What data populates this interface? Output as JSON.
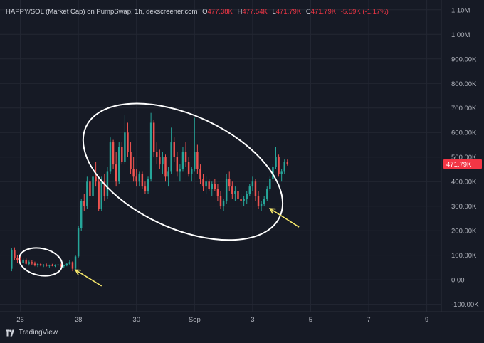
{
  "header": {
    "title": "HAPPY/SOL (Market Cap) on PumpSwap, 1h, dexscreener.com",
    "ohlc": [
      {
        "label": "O",
        "value": "477.38K"
      },
      {
        "label": "H",
        "value": "477.54K"
      },
      {
        "label": "L",
        "value": "471.79K"
      },
      {
        "label": "C",
        "value": "471.79K"
      }
    ],
    "change": "-5.59K (-1.17%)"
  },
  "footer": {
    "brand": "TradingView",
    "logo_icon": "tradingview-logo-icon"
  },
  "colors": {
    "background": "#161a25",
    "grid": "#232733",
    "up": "#26a69a",
    "down": "#ef5350",
    "price_line": "#f23645",
    "annotation_ellipse": "#ffffff",
    "annotation_arrow": "#f5e66a"
  },
  "chart_data": {
    "type": "candlestick",
    "title": "HAPPY/SOL (Market Cap) on PumpSwap, 1h, dexscreener.com",
    "y_axis": {
      "ticks": [
        -100,
        0,
        100,
        200,
        300,
        400,
        500,
        600,
        700,
        800,
        900,
        1000,
        1100
      ],
      "tick_labels": [
        "-100.00K",
        "0.00",
        "100.00K",
        "200.00K",
        "300.00K",
        "400.00K",
        "500.00K",
        "600.00K",
        "700.00K",
        "800.00K",
        "900.00K",
        "1.00M",
        "1.10M"
      ],
      "unit": "K",
      "ylim": [
        -130,
        1140
      ]
    },
    "x_axis": {
      "ticks": [
        26,
        28,
        30,
        32,
        34,
        36,
        38,
        40
      ],
      "tick_labels": [
        "26",
        "28",
        "30",
        "Sep",
        "3",
        "5",
        "7",
        "9"
      ],
      "xlim": [
        25.3,
        40.5
      ]
    },
    "last_price": {
      "value": 471.79,
      "label": "471.79K"
    },
    "grid": true,
    "annotations": [
      {
        "type": "ellipse",
        "cx": 26.7,
        "cy": 73,
        "rx": 0.75,
        "ry": 55
      },
      {
        "type": "ellipse",
        "cx": 31.6,
        "cy": 440,
        "rx": 3.68,
        "ry": 230
      },
      {
        "type": "arrow",
        "from": [
          28.8,
          -25
        ],
        "to": [
          27.9,
          40
        ]
      },
      {
        "type": "arrow",
        "from": [
          35.6,
          215
        ],
        "to": [
          34.6,
          290
        ]
      }
    ],
    "candles": [
      [
        25.7,
        45,
        130,
        35,
        120
      ],
      [
        25.8,
        120,
        132,
        80,
        90
      ],
      [
        25.9,
        90,
        100,
        70,
        80
      ],
      [
        26.0,
        80,
        95,
        60,
        70
      ],
      [
        26.1,
        70,
        88,
        65,
        82
      ],
      [
        26.2,
        82,
        90,
        60,
        65
      ],
      [
        26.3,
        65,
        78,
        58,
        72
      ],
      [
        26.4,
        72,
        80,
        60,
        66
      ],
      [
        26.5,
        66,
        74,
        55,
        60
      ],
      [
        26.6,
        60,
        70,
        52,
        64
      ],
      [
        26.7,
        64,
        68,
        55,
        58
      ],
      [
        26.8,
        58,
        64,
        52,
        61
      ],
      [
        26.9,
        61,
        66,
        54,
        57
      ],
      [
        27.0,
        57,
        62,
        50,
        60
      ],
      [
        27.1,
        60,
        65,
        55,
        58
      ],
      [
        27.2,
        58,
        63,
        52,
        59
      ],
      [
        27.3,
        59,
        64,
        55,
        62
      ],
      [
        27.4,
        62,
        66,
        52,
        55
      ],
      [
        27.5,
        55,
        62,
        48,
        60
      ],
      [
        27.6,
        60,
        68,
        55,
        65
      ],
      [
        27.7,
        65,
        80,
        60,
        72
      ],
      [
        27.8,
        72,
        75,
        35,
        45
      ],
      [
        27.9,
        45,
        100,
        40,
        95
      ],
      [
        28.0,
        95,
        220,
        90,
        210
      ],
      [
        28.1,
        210,
        330,
        200,
        320
      ],
      [
        28.2,
        320,
        350,
        280,
        300
      ],
      [
        28.3,
        300,
        420,
        290,
        400
      ],
      [
        28.4,
        400,
        410,
        320,
        340
      ],
      [
        28.5,
        340,
        440,
        330,
        420
      ],
      [
        28.6,
        420,
        480,
        380,
        400
      ],
      [
        28.7,
        400,
        410,
        280,
        290
      ],
      [
        28.8,
        290,
        420,
        280,
        400
      ],
      [
        28.9,
        400,
        430,
        320,
        340
      ],
      [
        29.0,
        340,
        460,
        330,
        440
      ],
      [
        29.1,
        440,
        580,
        430,
        560
      ],
      [
        29.2,
        560,
        570,
        450,
        470
      ],
      [
        29.3,
        470,
        520,
        380,
        400
      ],
      [
        29.4,
        400,
        560,
        390,
        540
      ],
      [
        29.5,
        540,
        560,
        470,
        480
      ],
      [
        29.6,
        480,
        670,
        470,
        600
      ],
      [
        29.7,
        600,
        640,
        500,
        520
      ],
      [
        29.8,
        520,
        560,
        430,
        450
      ],
      [
        29.9,
        450,
        500,
        400,
        420
      ],
      [
        30.0,
        420,
        450,
        380,
        400
      ],
      [
        30.1,
        400,
        440,
        380,
        430
      ],
      [
        30.2,
        430,
        440,
        370,
        380
      ],
      [
        30.3,
        380,
        400,
        350,
        360
      ],
      [
        30.4,
        360,
        420,
        350,
        410
      ],
      [
        30.5,
        410,
        680,
        400,
        640
      ],
      [
        30.6,
        640,
        650,
        500,
        520
      ],
      [
        30.7,
        520,
        560,
        470,
        500
      ],
      [
        30.8,
        500,
        530,
        450,
        470
      ],
      [
        30.9,
        470,
        520,
        430,
        500
      ],
      [
        31.0,
        500,
        510,
        400,
        420
      ],
      [
        31.1,
        420,
        460,
        380,
        440
      ],
      [
        31.2,
        440,
        620,
        430,
        560
      ],
      [
        31.3,
        560,
        580,
        480,
        500
      ],
      [
        31.4,
        500,
        520,
        420,
        440
      ],
      [
        31.5,
        440,
        470,
        400,
        450
      ],
      [
        31.6,
        450,
        540,
        440,
        520
      ],
      [
        31.7,
        520,
        560,
        460,
        480
      ],
      [
        31.8,
        480,
        500,
        420,
        430
      ],
      [
        31.9,
        430,
        460,
        400,
        450
      ],
      [
        32.0,
        450,
        660,
        440,
        520
      ],
      [
        32.1,
        520,
        550,
        430,
        450
      ],
      [
        32.2,
        450,
        470,
        390,
        410
      ],
      [
        32.3,
        410,
        430,
        360,
        380
      ],
      [
        32.4,
        380,
        420,
        350,
        400
      ],
      [
        32.5,
        400,
        410,
        360,
        370
      ],
      [
        32.6,
        370,
        400,
        340,
        390
      ],
      [
        32.7,
        390,
        410,
        360,
        370
      ],
      [
        32.8,
        370,
        390,
        320,
        340
      ],
      [
        32.9,
        340,
        360,
        290,
        300
      ],
      [
        33.0,
        300,
        330,
        280,
        320
      ],
      [
        33.1,
        320,
        430,
        310,
        410
      ],
      [
        33.2,
        410,
        440,
        360,
        380
      ],
      [
        33.3,
        380,
        400,
        330,
        350
      ],
      [
        33.4,
        350,
        380,
        320,
        360
      ],
      [
        33.5,
        360,
        380,
        320,
        330
      ],
      [
        33.6,
        330,
        350,
        300,
        320
      ],
      [
        33.7,
        320,
        340,
        300,
        330
      ],
      [
        33.8,
        330,
        360,
        310,
        350
      ],
      [
        33.9,
        350,
        390,
        340,
        380
      ],
      [
        34.0,
        380,
        420,
        360,
        400
      ],
      [
        34.1,
        400,
        410,
        320,
        340
      ],
      [
        34.2,
        340,
        360,
        290,
        300
      ],
      [
        34.3,
        300,
        320,
        280,
        310
      ],
      [
        34.4,
        310,
        340,
        300,
        330
      ],
      [
        34.5,
        330,
        380,
        320,
        370
      ],
      [
        34.6,
        370,
        420,
        360,
        410
      ],
      [
        34.7,
        410,
        470,
        400,
        460
      ],
      [
        34.8,
        460,
        540,
        450,
        500
      ],
      [
        34.9,
        500,
        510,
        420,
        430
      ],
      [
        35.0,
        430,
        450,
        400,
        440
      ],
      [
        35.1,
        440,
        490,
        430,
        480
      ],
      [
        35.2,
        480,
        490,
        465,
        472
      ]
    ]
  }
}
